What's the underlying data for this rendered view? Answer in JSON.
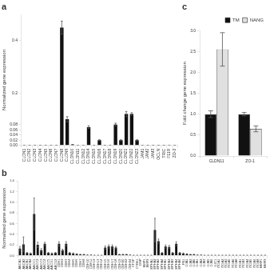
{
  "chart_data": [
    {
      "type": "bar",
      "title": "a",
      "categories": [
        "CLDN1",
        "CLDN2",
        "CLDN3",
        "CLDN4",
        "CLDN5",
        "CLDN6",
        "CLDN7",
        "CLDN8",
        "CLDN9",
        "CLDN10",
        "CLDN11",
        "CLDN12",
        "CLDN14",
        "CLDN15",
        "CLDN16",
        "CLDN17",
        "CLDN18",
        "CLDN19",
        "CLDN20",
        "CLDN21",
        "CLDN22",
        "CLDN23",
        "JAM1",
        "JAM2",
        "JAM3",
        "OCLN",
        "TRIC",
        "F11R",
        "ZO-3"
      ],
      "values": [
        0.0,
        0.0,
        0.0,
        0.0,
        0.0,
        0.0,
        0.0,
        0.45,
        0.1,
        0.003,
        0.0,
        0.0,
        0.07,
        0.0,
        0.02,
        0.0,
        0.0,
        0.08,
        0.02,
        0.12,
        0.12,
        0.02,
        0.0,
        0.0,
        0.0,
        0.0,
        0.0,
        0.0,
        0.0
      ],
      "errors": [
        0.0,
        0.0,
        0.0,
        0.0,
        0.0,
        0.0,
        0.0,
        0.025,
        0.01,
        0.001,
        0.0,
        0.0,
        0.005,
        0.0,
        0.002,
        0.0,
        0.0,
        0.005,
        0.002,
        0.01,
        0.005,
        0.002,
        0.0,
        0.0,
        0.0,
        0.0,
        0.0,
        0.0,
        0.0
      ],
      "color": "#111111",
      "ylabel": "Normalized gene expression",
      "ylim": [
        0,
        0.5
      ],
      "yticks": [
        {
          "value": 0,
          "label": "0.00"
        },
        0.02,
        0.04,
        0.06,
        0.08,
        0.2,
        0.4
      ],
      "grid": false
    },
    {
      "type": "bar",
      "title": "b",
      "categories": [
        "ABCA1",
        "ABCA3",
        "ABCB1",
        "ABCB4",
        "ABCC1",
        "ABCC2",
        "ABCC3",
        "ABCC4",
        "ABCC5",
        "ABCG1",
        "ABCG2",
        "CDH1",
        "CDH2",
        "CDH3",
        "CDH4",
        "CDH5",
        "CDH6",
        "CDH7",
        "CDH8",
        "CDH10",
        "CDH11",
        "CDH12",
        "CDH13",
        "CDH14",
        "CDH15",
        "CDH16",
        "CDH17",
        "CDH18",
        "CDH19",
        "CDH20",
        "CDH22",
        "CDH24",
        "CTGF",
        "CYR61",
        "DSP",
        "EMP1",
        "EMP2",
        "EPHA1",
        "EPHA2",
        "EPHA3",
        "EPHA4",
        "EPHB1",
        "EPHB2",
        "EPHB3",
        "EPHB4",
        "EPHB6",
        "FN1",
        "GJA1",
        "GJA3",
        "GJA5",
        "GJB1",
        "GJB2",
        "GJB3",
        "GJB5",
        "GJB6",
        "GJC1",
        "ITGA1",
        "ITGA2",
        "ITGA3",
        "ITGA5",
        "ITGA6",
        "ITGA8",
        "ITGB1",
        "ITGB3",
        "ITGB4",
        "ITGB5",
        "ITGB6",
        "ITGB8",
        "MMP1",
        "MMP2"
      ],
      "values": [
        0.13,
        0.21,
        0.05,
        0.04,
        0.78,
        0.2,
        0.1,
        0.22,
        0.05,
        0.04,
        0.05,
        0.22,
        0.1,
        0.22,
        0.05,
        0.04,
        0.03,
        0.02,
        0.02,
        0.01,
        0.01,
        0.005,
        0.005,
        0.005,
        0.15,
        0.17,
        0.17,
        0.15,
        0.02,
        0.02,
        0.02,
        0.01,
        0.005,
        0.005,
        0.005,
        0.005,
        0.005,
        0.005,
        0.48,
        0.27,
        0.05,
        0.17,
        0.16,
        0.05,
        0.22,
        0.05,
        0.04,
        0.03,
        0.02,
        0.02,
        0.01,
        0.01,
        0.005,
        0.005,
        0.005,
        0.005,
        0.005,
        0.005,
        0.005,
        0.005,
        0.005,
        0.005,
        0.005,
        0.005,
        0.005,
        0.005,
        0.005,
        0.005,
        0.005,
        0.005
      ],
      "errors": [
        0.04,
        0.14,
        0.01,
        0.01,
        0.3,
        0.05,
        0.03,
        0.03,
        0.01,
        0.01,
        0.01,
        0.04,
        0.02,
        0.04,
        0.01,
        0.01,
        0.005,
        0.004,
        0.003,
        0.002,
        0.002,
        0.001,
        0.001,
        0.001,
        0.03,
        0.03,
        0.03,
        0.02,
        0.003,
        0.003,
        0.003,
        0.002,
        0.001,
        0.001,
        0.001,
        0.001,
        0.001,
        0.001,
        0.22,
        0.04,
        0.01,
        0.03,
        0.03,
        0.01,
        0.04,
        0.01,
        0.01,
        0.005,
        0.003,
        0.003,
        0.002,
        0.002,
        0.001,
        0.001,
        0.001,
        0.001,
        0.001,
        0.001,
        0.001,
        0.001,
        0.001,
        0.001,
        0.001,
        0.001,
        0.001,
        0.001,
        0.001,
        0.001,
        0.001,
        0.001
      ],
      "color": "#111111",
      "ylabel": "Normalized gene expression",
      "ylim": [
        0,
        1.4
      ],
      "yticks": [
        {
          "value": 0,
          "label": "0.0"
        },
        0.2,
        0.4,
        0.6,
        0.8,
        {
          "value": 1,
          "label": "1.0"
        },
        1.2,
        1.4
      ],
      "grid": false
    },
    {
      "type": "bar",
      "title": "c",
      "categories": [
        "CLDN11",
        "ZO-1"
      ],
      "series": [
        {
          "name": "TM",
          "color": "#111111",
          "values": [
            1.0,
            1.0
          ],
          "errors": [
            0.08,
            0.04
          ]
        },
        {
          "name": "NANG",
          "color": "#e0e0e0",
          "values": [
            2.55,
            0.65
          ],
          "errors": [
            0.4,
            0.07
          ]
        }
      ],
      "ylabel": "Fold change gene expression",
      "ylim": [
        0,
        3.0
      ],
      "yticks": [
        {
          "value": 0,
          "label": "0.0"
        },
        0.5,
        {
          "value": 1,
          "label": "1.0"
        },
        1.5,
        {
          "value": 2,
          "label": "2.0"
        },
        2.5,
        {
          "value": 3,
          "label": "3.0"
        }
      ],
      "legend": "upper right",
      "grid": false
    }
  ]
}
